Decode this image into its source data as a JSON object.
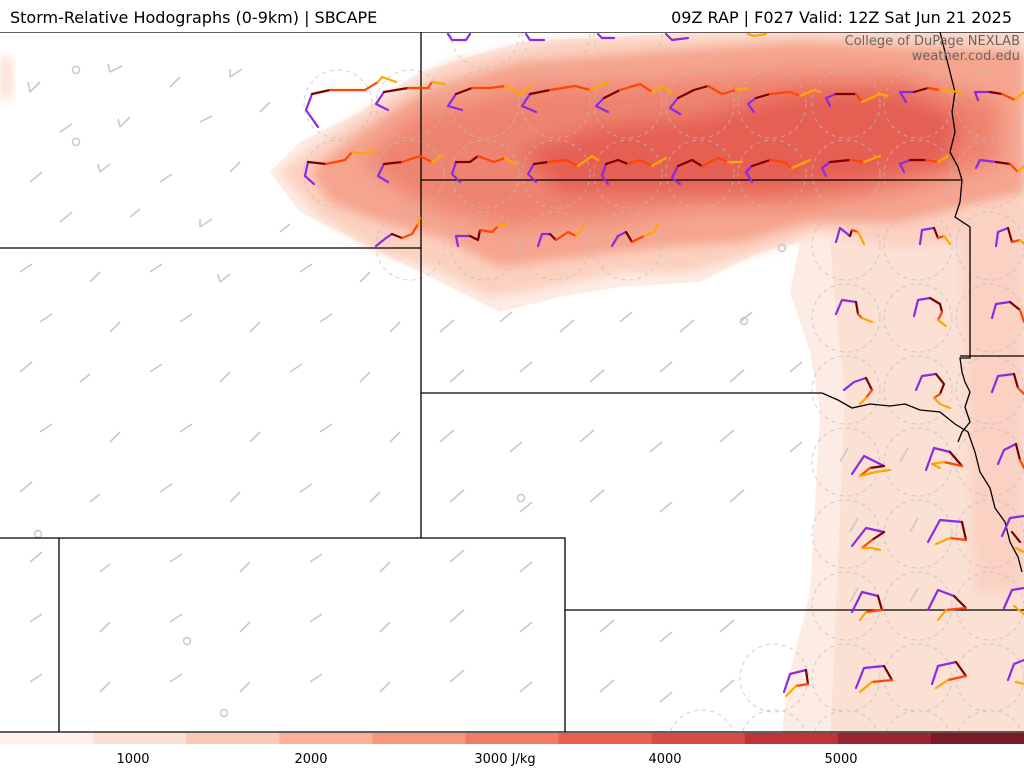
{
  "header": {
    "title_left": "Storm-Relative Hodographs (0-9km) | SBCAPE",
    "title_right": "09Z RAP | F027 Valid: 12Z Sat Jun 21 2025"
  },
  "credit": {
    "line1": "College of DuPage NEXLAB",
    "line2": "weather.cod.edu"
  },
  "colorbar": {
    "unit": "J/kg",
    "ticks": [
      "1000",
      "2000",
      "3000 J/kg",
      "4000",
      "5000"
    ],
    "colors": [
      "#fff1ea",
      "#fde0d2",
      "#fcc9b4",
      "#fbb198",
      "#f9977c",
      "#f47b63",
      "#e9604f",
      "#d84a43",
      "#bd3439",
      "#9c2431",
      "#7a1a28"
    ]
  },
  "colors": {
    "cape_max": "#e0504a",
    "hodograph_low": "#8a2be2",
    "hodograph_mid": "#7a0000",
    "hodograph_high": "#ff4500",
    "hodograph_top": "#ffa500",
    "borders": "#000000",
    "wind_barbs": "#c8c8c8"
  }
}
